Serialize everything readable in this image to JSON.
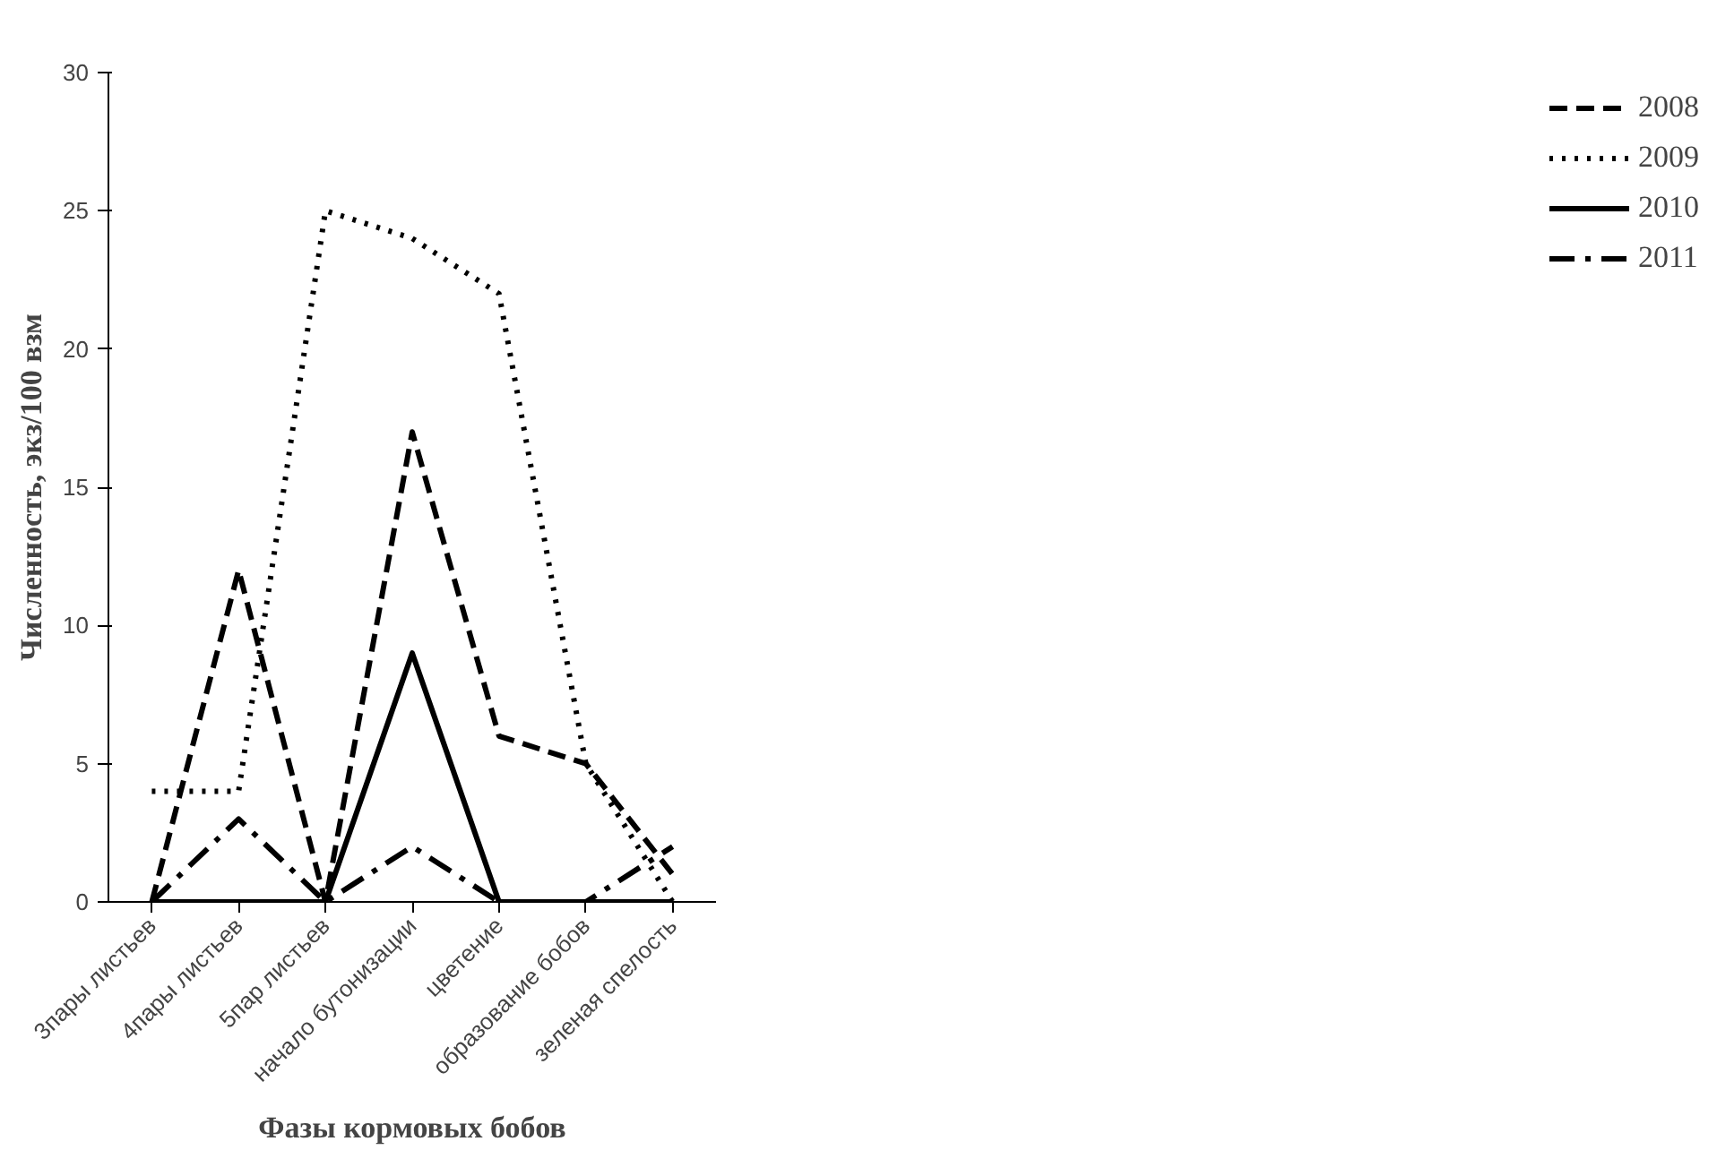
{
  "chart_data": {
    "type": "line",
    "xlabel": "Фазы кормовых бобов",
    "ylabel": "Численность, экз/100 взм",
    "categories": [
      "3пары листьев",
      "4пары листьев",
      "5пар листьев",
      "начало бутонизации",
      "цветение",
      "образование бобов",
      "зеленая спелость"
    ],
    "ylim": [
      0,
      30
    ],
    "yticks": [
      0,
      5,
      10,
      15,
      20,
      25,
      30
    ],
    "grid": false,
    "legend": "right",
    "series": [
      {
        "name": "2008",
        "color": "#000000",
        "line_style": "dashed",
        "values": [
          0,
          12,
          0,
          17,
          6,
          5,
          1
        ]
      },
      {
        "name": "2009",
        "color": "#000000",
        "line_style": "dotted",
        "values": [
          4,
          4,
          25,
          24,
          22,
          5,
          0
        ]
      },
      {
        "name": "2010",
        "color": "#000000",
        "line_style": "solid",
        "values": [
          0,
          0,
          0,
          9,
          0,
          0,
          0
        ]
      },
      {
        "name": "2011",
        "color": "#000000",
        "line_style": "dashdot",
        "values": [
          0,
          3,
          0,
          2,
          0,
          0,
          2
        ]
      }
    ]
  }
}
